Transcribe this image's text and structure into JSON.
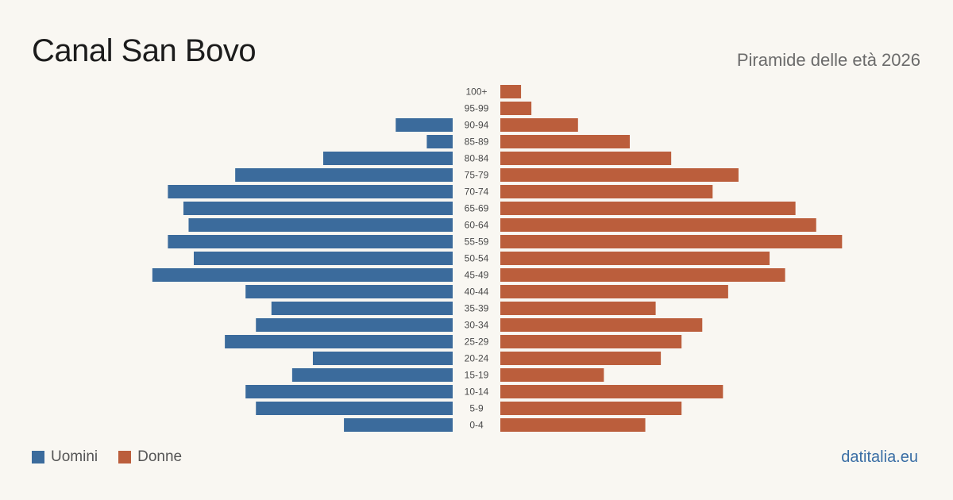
{
  "header": {
    "title": "Canal San Bovo",
    "subtitle": "Piramide delle età 2026"
  },
  "colors": {
    "men": "#3b6b9c",
    "women": "#bb5e3c"
  },
  "legend": {
    "men_label": "Uomini",
    "women_label": "Donne"
  },
  "footer": {
    "source": "datitalia.eu"
  },
  "chart_data": {
    "type": "bar",
    "orientation": "horizontal-pyramid",
    "categories": [
      "100+",
      "95-99",
      "90-94",
      "85-89",
      "80-84",
      "75-79",
      "70-74",
      "65-69",
      "60-64",
      "55-59",
      "50-54",
      "45-49",
      "40-44",
      "35-39",
      "30-34",
      "25-29",
      "20-24",
      "15-19",
      "10-14",
      "5-9",
      "0-4"
    ],
    "series": [
      {
        "name": "Uomini",
        "values": [
          0,
          0,
          11,
          5,
          25,
          42,
          55,
          52,
          51,
          55,
          50,
          58,
          40,
          35,
          38,
          44,
          27,
          31,
          40,
          38,
          21
        ]
      },
      {
        "name": "Donne",
        "values": [
          4,
          6,
          15,
          25,
          33,
          46,
          41,
          57,
          61,
          66,
          52,
          55,
          44,
          30,
          39,
          35,
          31,
          20,
          43,
          35,
          28
        ]
      }
    ],
    "grid": false,
    "legend_position": "bottom-left"
  }
}
